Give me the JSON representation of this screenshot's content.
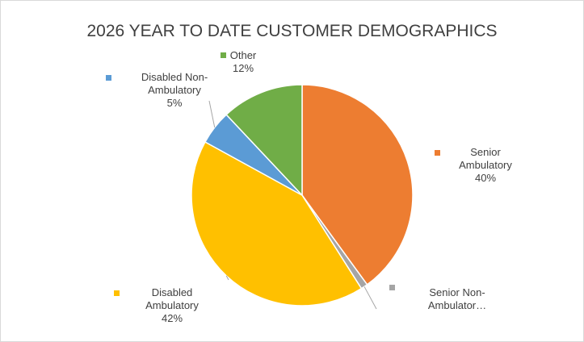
{
  "chart_data": {
    "type": "pie",
    "title": "2026 YEAR TO DATE CUSTOMER DEMOGRAPHICS",
    "categories": [
      "Senior Ambulatory",
      "Senior Non-Ambulator…",
      "Disabled Ambulatory",
      "Disabled Non-Ambulatory",
      "Other"
    ],
    "values": [
      40,
      1,
      42,
      5,
      12
    ],
    "value_labels": [
      "40%",
      null,
      "42%",
      "5%",
      "12%"
    ],
    "colors": [
      "#ED7D31",
      "#A5A5A5",
      "#FFC000",
      "#5B9BD5",
      "#70AD47"
    ]
  }
}
